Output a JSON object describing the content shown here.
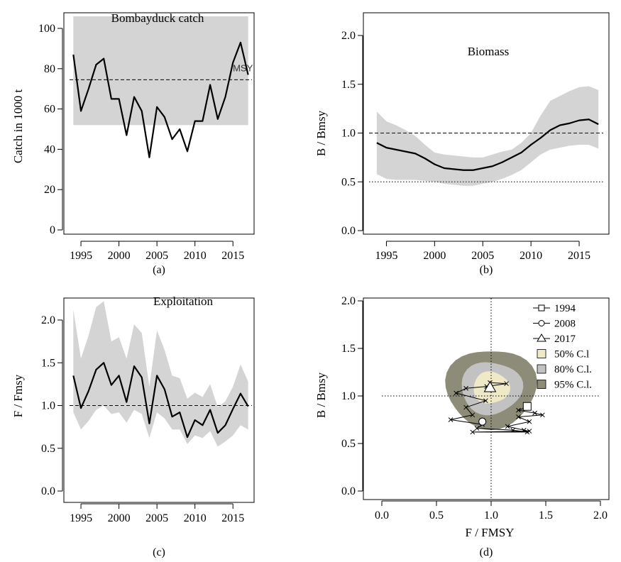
{
  "chart_data": [
    {
      "id": "a",
      "type": "line",
      "title": "Bombayduck catch",
      "xlabel": "",
      "ylabel": "Catch in 1000 t",
      "panel_label": "(a)",
      "xlim": [
        1993.5,
        2017.5
      ],
      "ylim": [
        -5,
        108
      ],
      "xticks": [
        1995,
        2000,
        2005,
        2010,
        2015
      ],
      "yticks": [
        0,
        20,
        40,
        60,
        80,
        100
      ],
      "band": {
        "lower": 52,
        "upper": 106,
        "color": "#d4d4d4"
      },
      "reference_lines": [
        {
          "y": 74.5,
          "style": "dashed",
          "label": "MSY"
        }
      ],
      "series": [
        {
          "x": [
            1994,
            1995,
            1996,
            1997,
            1998,
            1999,
            2000,
            2001,
            2002,
            2003,
            2004,
            2005,
            2006,
            2007,
            2008,
            2009,
            2010,
            2011,
            2012,
            2013,
            2014,
            2015,
            2016,
            2017
          ],
          "values": [
            87,
            59,
            70,
            82,
            85,
            65,
            65,
            47,
            66,
            59,
            36,
            61,
            56,
            45,
            50,
            39,
            54,
            54,
            72,
            55,
            66,
            83,
            93,
            77
          ]
        }
      ]
    },
    {
      "id": "b",
      "type": "line",
      "title": "Biomass",
      "xlabel": "",
      "ylabel": "B / Bmsy",
      "panel_label": "(b)",
      "xlim": [
        1993.2,
        2017.5
      ],
      "ylim": [
        -0.05,
        2.1
      ],
      "xticks": [
        1995,
        2000,
        2005,
        2010,
        2015
      ],
      "yticks": [
        0.0,
        0.5,
        1.0,
        1.5,
        2.0
      ],
      "reference_lines": [
        {
          "y": 1.0,
          "style": "dashed"
        },
        {
          "y": 0.5,
          "style": "dotted"
        }
      ],
      "band": {
        "x": [
          1994,
          1995,
          1996,
          1997,
          1998,
          1999,
          2000,
          2001,
          2002,
          2003,
          2004,
          2005,
          2006,
          2007,
          2008,
          2009,
          2010,
          2011,
          2012,
          2013,
          2014,
          2015,
          2016,
          2017
        ],
        "lower": [
          0.58,
          0.53,
          0.52,
          0.52,
          0.52,
          0.51,
          0.5,
          0.48,
          0.47,
          0.46,
          0.46,
          0.48,
          0.5,
          0.53,
          0.57,
          0.62,
          0.7,
          0.78,
          0.83,
          0.85,
          0.87,
          0.88,
          0.88,
          0.84
        ],
        "upper": [
          1.22,
          1.12,
          1.08,
          1.03,
          0.97,
          0.88,
          0.8,
          0.78,
          0.77,
          0.76,
          0.75,
          0.75,
          0.78,
          0.81,
          0.83,
          0.9,
          1.0,
          1.18,
          1.33,
          1.38,
          1.43,
          1.47,
          1.48,
          1.44
        ],
        "color": "#d4d4d4"
      },
      "series": [
        {
          "x": [
            1994,
            1995,
            1996,
            1997,
            1998,
            1999,
            2000,
            2001,
            2002,
            2003,
            2004,
            2005,
            2006,
            2007,
            2008,
            2009,
            2010,
            2011,
            2012,
            2013,
            2014,
            2015,
            2016,
            2017
          ],
          "values": [
            0.9,
            0.85,
            0.83,
            0.81,
            0.79,
            0.74,
            0.68,
            0.64,
            0.63,
            0.62,
            0.62,
            0.64,
            0.66,
            0.7,
            0.75,
            0.8,
            0.88,
            0.95,
            1.03,
            1.08,
            1.1,
            1.13,
            1.14,
            1.09
          ]
        }
      ]
    },
    {
      "id": "c",
      "type": "line",
      "title": "Exploitation",
      "xlabel": "",
      "ylabel": "F / Fmsy",
      "panel_label": "(c)",
      "xlim": [
        1993.5,
        2017.5
      ],
      "ylim": [
        -0.05,
        2.3
      ],
      "xticks": [
        1995,
        2000,
        2005,
        2010,
        2015
      ],
      "yticks": [
        0.0,
        0.5,
        1.0,
        1.5,
        2.0
      ],
      "reference_lines": [
        {
          "y": 1.0,
          "style": "dashed"
        }
      ],
      "band": {
        "x": [
          1994,
          1995,
          1996,
          1997,
          1998,
          1999,
          2000,
          2001,
          2002,
          2003,
          2004,
          2005,
          2006,
          2007,
          2008,
          2009,
          2010,
          2011,
          2012,
          2013,
          2014,
          2015,
          2016,
          2017
        ],
        "lower": [
          0.92,
          0.72,
          0.82,
          0.95,
          1.0,
          0.9,
          0.92,
          0.8,
          0.95,
          0.9,
          0.62,
          0.92,
          0.85,
          0.72,
          0.72,
          0.55,
          0.65,
          0.62,
          0.7,
          0.52,
          0.58,
          0.65,
          0.77,
          0.72
        ],
        "upper": [
          2.12,
          1.55,
          1.82,
          2.15,
          2.22,
          1.75,
          1.8,
          1.55,
          1.95,
          1.85,
          1.22,
          1.88,
          1.65,
          1.35,
          1.32,
          1.08,
          1.15,
          1.1,
          1.25,
          0.98,
          1.05,
          1.22,
          1.48,
          1.28
        ],
        "color": "#d4d4d4"
      },
      "series": [
        {
          "x": [
            1994,
            1995,
            1996,
            1997,
            1998,
            1999,
            2000,
            2001,
            2002,
            2003,
            2004,
            2005,
            2006,
            2007,
            2008,
            2009,
            2010,
            2011,
            2012,
            2013,
            2014,
            2015,
            2016,
            2017
          ],
          "values": [
            1.35,
            0.97,
            1.17,
            1.42,
            1.5,
            1.24,
            1.35,
            1.04,
            1.46,
            1.33,
            0.79,
            1.35,
            1.19,
            0.87,
            0.92,
            0.63,
            0.83,
            0.77,
            0.95,
            0.68,
            0.77,
            0.96,
            1.14,
            0.99
          ]
        }
      ]
    },
    {
      "id": "d",
      "type": "scatter",
      "title": "",
      "xlabel": "F / FMSY",
      "ylabel": "B / Bmsy",
      "panel_label": "(d)",
      "xlim": [
        -0.08,
        2.12
      ],
      "ylim": [
        -0.05,
        2.1
      ],
      "xticks": [
        0.0,
        0.5,
        1.0,
        1.5,
        2.0
      ],
      "yticks": [
        0.0,
        0.5,
        1.0,
        1.5,
        2.0
      ],
      "reference_lines": [
        {
          "x": 1.0,
          "style": "dotted"
        },
        {
          "y": 1.0,
          "style": "dotted"
        }
      ],
      "confidence_regions": [
        {
          "name": "95% C.l.",
          "color": "#8c8c78",
          "cx": 1.0,
          "cy": 1.09,
          "rx": 0.4,
          "ry": 0.42
        },
        {
          "name": "80% C.l.",
          "color": "#c2c2c2",
          "cx": 1.0,
          "cy": 1.09,
          "rx": 0.27,
          "ry": 0.28
        },
        {
          "name": "50% C.l",
          "color": "#efe9c8",
          "cx": 1.0,
          "cy": 1.09,
          "rx": 0.16,
          "ry": 0.17
        }
      ],
      "trajectory": {
        "F": [
          1.32,
          1.25,
          1.4,
          1.47,
          1.25,
          1.35,
          1.15,
          1.3,
          1.35,
          0.83,
          1.33,
          1.2,
          0.87,
          0.92,
          0.63,
          0.83,
          0.77,
          0.95,
          0.68,
          0.77,
          0.96,
          1.14,
          0.99
        ],
        "B": [
          0.88,
          0.85,
          0.82,
          0.8,
          0.78,
          0.73,
          0.68,
          0.64,
          0.63,
          0.62,
          0.62,
          0.64,
          0.66,
          0.7,
          0.75,
          0.8,
          0.88,
          0.95,
          1.03,
          1.08,
          1.1,
          1.13,
          1.14
        ]
      },
      "markers": [
        {
          "year": "1994",
          "shape": "square",
          "F": 1.33,
          "B": 0.89
        },
        {
          "year": "2008",
          "shape": "circle",
          "F": 0.92,
          "B": 0.73
        },
        {
          "year": "2017",
          "shape": "triangle",
          "F": 0.99,
          "B": 1.09
        }
      ],
      "legend": {
        "position": "top-right",
        "entries": [
          {
            "label": "1994",
            "symbol": "square-line"
          },
          {
            "label": "2008",
            "symbol": "circle-line"
          },
          {
            "label": "2017",
            "symbol": "triangle-line"
          },
          {
            "label": "50% C.l",
            "symbol": "box",
            "color": "#efe9c8"
          },
          {
            "label": "80% C.l.",
            "symbol": "box",
            "color": "#c2c2c2"
          },
          {
            "label": "95% C.l.",
            "symbol": "box",
            "color": "#8c8c78"
          }
        ]
      }
    }
  ]
}
